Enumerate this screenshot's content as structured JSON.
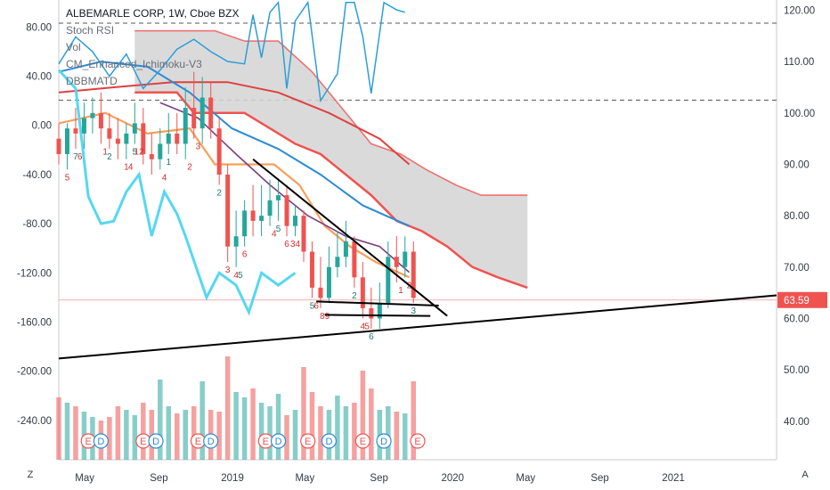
{
  "legend": {
    "title": "ALBEMARLE CORP, 1W, Cboe BZX",
    "lines": [
      "Stoch RSI",
      "Vol",
      "CM_Enhanced_Ichimoku-V3",
      "DBBMATD"
    ]
  },
  "corner_left": "Z",
  "corner_right": "A",
  "colors": {
    "up": "#26a69a",
    "down": "#ef5350",
    "stoch": "#2b9ed8",
    "cyan": "#55d8f0",
    "ichimoku_cloud": "#d3d3d3",
    "ichimoku_edge": "#ef5350",
    "orange": "#f5a05a",
    "ma_blue": "#2b8bd6",
    "ma_red": "#e04040",
    "ma_purple": "#7b3f7f",
    "price_tag": "#ef5350",
    "earnings_marker": "#ef5350",
    "trendline": "#000000"
  },
  "chart_data": {
    "type": "candlestick",
    "symbol": "ALBEMARLE CORP",
    "interval": "1W",
    "exchange": "Cboe BZX",
    "right_axis": {
      "ticks": [
        120,
        110,
        100,
        90,
        80,
        70,
        60,
        50,
        40
      ],
      "tick_labels": [
        "120.00",
        "110.00",
        "100.00",
        "90.00",
        "80.00",
        "70.00",
        "60.00",
        "50.00",
        "40.00"
      ],
      "range": [
        32.5,
        122
      ]
    },
    "left_axis": {
      "ticks": [
        80,
        40,
        0,
        -40,
        -80,
        -120,
        -160,
        -200,
        -240
      ],
      "tick_labels": [
        "80.00",
        "40.00",
        "0.00",
        "-40.00",
        "-80.00",
        "-120.00",
        "-160.00",
        "-200.00",
        "-240.00"
      ],
      "range": [
        -272,
        102
      ]
    },
    "x_axis": {
      "tick_labels": [
        "May",
        "Sep",
        "2019",
        "May",
        "Sep",
        "2020",
        "May",
        "Sep",
        "2021"
      ],
      "range": [
        "2018-03-19",
        "2021-06-21"
      ]
    },
    "last_price": 63.59,
    "dashed_levels": [
      117.5,
      102.5
    ],
    "earnings_label": "E",
    "dividend_label": "D",
    "events": [
      [
        "2018-05-07",
        "E"
      ],
      [
        "2018-05-28",
        "D"
      ],
      [
        "2018-08-06",
        "E"
      ],
      [
        "2018-08-27",
        "D"
      ],
      [
        "2018-11-05",
        "E"
      ],
      [
        "2018-11-26",
        "D"
      ],
      [
        "2019-02-25",
        "E"
      ],
      [
        "2019-03-18",
        "D"
      ],
      [
        "2019-05-06",
        "E"
      ],
      [
        "2019-06-10",
        "D"
      ],
      [
        "2019-08-05",
        "E"
      ],
      [
        "2019-09-09",
        "D"
      ],
      [
        "2019-11-04",
        "E"
      ]
    ],
    "series": [
      {
        "name": "price",
        "type": "candlestick",
        "x": [
          "2018-03-19",
          "2018-04-02",
          "2018-04-16",
          "2018-04-30",
          "2018-05-14",
          "2018-05-28",
          "2018-06-11",
          "2018-06-25",
          "2018-07-09",
          "2018-07-23",
          "2018-08-06",
          "2018-08-20",
          "2018-09-03",
          "2018-09-17",
          "2018-10-01",
          "2018-10-15",
          "2018-10-29",
          "2018-11-12",
          "2018-11-26",
          "2018-12-10",
          "2018-12-24",
          "2019-01-07",
          "2019-01-21",
          "2019-02-04",
          "2019-02-18",
          "2019-03-04",
          "2019-03-18",
          "2019-04-01",
          "2019-04-15",
          "2019-04-29",
          "2019-05-13",
          "2019-05-27",
          "2019-06-10",
          "2019-06-24",
          "2019-07-08",
          "2019-07-22",
          "2019-08-05",
          "2019-08-19",
          "2019-09-02",
          "2019-09-16",
          "2019-09-30",
          "2019-10-14",
          "2019-10-28"
        ],
        "open": [
          95,
          92,
          97,
          96,
          99,
          100,
          97,
          95,
          94,
          96,
          98,
          92,
          91,
          94,
          96,
          94,
          101,
          97,
          103,
          97,
          88,
          74,
          76,
          81,
          79,
          80,
          83,
          84,
          78,
          80,
          73,
          66,
          64,
          70,
          72,
          75,
          68,
          62,
          60,
          63,
          72,
          70,
          73
        ],
        "high": [
          98,
          98,
          101,
          102,
          103,
          104,
          100,
          99,
          98,
          102,
          101,
          96,
          97,
          100,
          100,
          105,
          108,
          107,
          106,
          99,
          90,
          81,
          83,
          86,
          86,
          87,
          87,
          86,
          82,
          81,
          75,
          72,
          74,
          77,
          79,
          76,
          71,
          66,
          67,
          75,
          76,
          76,
          75
        ],
        "low": [
          90,
          89,
          93,
          93,
          96,
          94,
          93,
          91,
          91,
          94,
          90,
          88,
          89,
          92,
          92,
          91,
          95,
          94,
          95,
          86,
          71,
          70,
          74,
          76,
          76,
          78,
          79,
          76,
          76,
          71,
          64,
          62,
          63,
          68,
          70,
          66,
          60,
          58,
          58,
          62,
          67,
          68,
          63
        ],
        "close": [
          92,
          97,
          96,
          99,
          100,
          97,
          95,
          94,
          96,
          98,
          92,
          91,
          94,
          96,
          94,
          101,
          97,
          103,
          97,
          88,
          74,
          76,
          81,
          79,
          80,
          83,
          84,
          78,
          80,
          73,
          66,
          64,
          70,
          72,
          75,
          68,
          62,
          60,
          63,
          72,
          70,
          73,
          64
        ]
      },
      {
        "name": "stoch_rsi",
        "values": [
          [
            "2018-03-19",
            50
          ],
          [
            "2018-04-16",
            72
          ],
          [
            "2018-05-14",
            60
          ],
          [
            "2018-06-11",
            40
          ],
          [
            "2018-07-09",
            58
          ],
          [
            "2018-08-06",
            30
          ],
          [
            "2018-09-03",
            45
          ],
          [
            "2018-10-01",
            62
          ],
          [
            "2018-10-29",
            70
          ],
          [
            "2018-11-26",
            60
          ],
          [
            "2018-12-24",
            52
          ],
          [
            "2019-01-21",
            50
          ],
          [
            "2019-02-04",
            90
          ],
          [
            "2019-02-18",
            55
          ],
          [
            "2019-03-04",
            92
          ],
          [
            "2019-03-18",
            100
          ],
          [
            "2019-04-01",
            30
          ],
          [
            "2019-04-15",
            85
          ],
          [
            "2019-05-06",
            100
          ],
          [
            "2019-05-27",
            20
          ],
          [
            "2019-06-24",
            42
          ],
          [
            "2019-07-08",
            100
          ],
          [
            "2019-07-22",
            100
          ],
          [
            "2019-08-05",
            72
          ],
          [
            "2019-08-19",
            26
          ],
          [
            "2019-09-09",
            100
          ],
          [
            "2019-09-30",
            94
          ],
          [
            "2019-10-14",
            92
          ]
        ]
      },
      {
        "name": "cyan_line",
        "values": [
          [
            "2018-03-19",
            45
          ],
          [
            "2018-04-16",
            30
          ],
          [
            "2018-05-07",
            -58
          ],
          [
            "2018-05-28",
            -80
          ],
          [
            "2018-06-18",
            -78
          ],
          [
            "2018-07-09",
            -54
          ],
          [
            "2018-07-30",
            -40
          ],
          [
            "2018-08-20",
            -90
          ],
          [
            "2018-09-10",
            -54
          ],
          [
            "2018-10-01",
            -72
          ],
          [
            "2018-10-15",
            -90
          ],
          [
            "2018-10-29",
            -110
          ],
          [
            "2018-11-19",
            -140
          ],
          [
            "2018-12-10",
            -120
          ],
          [
            "2019-01-07",
            -130
          ],
          [
            "2019-01-28",
            -152
          ],
          [
            "2019-02-18",
            -120
          ],
          [
            "2019-03-18",
            -130
          ],
          [
            "2019-04-15",
            -120
          ]
        ]
      },
      {
        "name": "ichimoku_red",
        "values": [
          [
            "2018-07-23",
            104
          ],
          [
            "2018-10-01",
            104
          ],
          [
            "2018-10-29",
            100
          ],
          [
            "2019-01-21",
            100
          ],
          [
            "2019-03-04",
            97
          ],
          [
            "2019-04-15",
            94
          ],
          [
            "2019-05-27",
            92
          ],
          [
            "2019-07-08",
            88
          ],
          [
            "2019-08-19",
            84
          ],
          [
            "2019-09-30",
            79
          ],
          [
            "2019-11-11",
            77
          ],
          [
            "2019-12-23",
            74
          ],
          [
            "2020-02-03",
            70
          ],
          [
            "2020-03-16",
            68
          ],
          [
            "2020-05-04",
            66
          ]
        ]
      },
      {
        "name": "ichimoku_upper",
        "values": [
          [
            "2018-07-23",
            116
          ],
          [
            "2018-09-24",
            116
          ],
          [
            "2018-12-03",
            116
          ],
          [
            "2019-01-21",
            114
          ],
          [
            "2019-03-18",
            114
          ],
          [
            "2019-05-13",
            108
          ],
          [
            "2019-07-08",
            100
          ],
          [
            "2019-08-19",
            94
          ],
          [
            "2019-10-07",
            92
          ],
          [
            "2019-11-18",
            89
          ],
          [
            "2020-01-06",
            86
          ],
          [
            "2020-02-17",
            84
          ],
          [
            "2020-05-04",
            84
          ]
        ]
      },
      {
        "name": "orange_baseline",
        "values": [
          [
            "2018-03-19",
            98
          ],
          [
            "2018-06-04",
            100
          ],
          [
            "2018-08-13",
            96
          ],
          [
            "2018-10-22",
            97
          ],
          [
            "2018-12-03",
            90
          ],
          [
            "2019-01-21",
            90
          ],
          [
            "2019-03-11",
            90
          ],
          [
            "2019-04-22",
            86
          ],
          [
            "2019-06-03",
            78
          ],
          [
            "2019-07-15",
            74
          ],
          [
            "2019-08-26",
            71
          ],
          [
            "2019-10-21",
            68
          ]
        ]
      },
      {
        "name": "ma_blue",
        "values": [
          [
            "2018-03-19",
            108
          ],
          [
            "2018-05-28",
            110
          ],
          [
            "2018-08-13",
            109
          ],
          [
            "2018-10-22",
            104
          ],
          [
            "2018-12-31",
            97
          ],
          [
            "2019-03-18",
            93
          ],
          [
            "2019-05-27",
            88
          ],
          [
            "2019-08-05",
            82
          ],
          [
            "2019-10-21",
            78
          ]
        ]
      },
      {
        "name": "ma_red",
        "values": [
          [
            "2018-03-19",
            104
          ],
          [
            "2018-06-18",
            105
          ],
          [
            "2018-09-24",
            106
          ],
          [
            "2018-12-24",
            106
          ],
          [
            "2019-03-18",
            104
          ],
          [
            "2019-06-10",
            100
          ],
          [
            "2019-09-02",
            95
          ],
          [
            "2019-10-21",
            90
          ]
        ]
      },
      {
        "name": "ma_purple",
        "values": [
          [
            "2018-09-03",
            102
          ],
          [
            "2018-11-05",
            99
          ],
          [
            "2019-01-07",
            92
          ],
          [
            "2019-03-04",
            86
          ],
          [
            "2019-05-06",
            80
          ],
          [
            "2019-07-08",
            76
          ],
          [
            "2019-09-02",
            74
          ],
          [
            "2019-10-21",
            69
          ]
        ]
      },
      {
        "name": "trendlines",
        "values": [
          {
            "from": [
              "2018-03-19",
              52.2
            ],
            "to": [
              "2021-06-21",
              64.5
            ]
          },
          {
            "from": [
              "2019-02-04",
              91
            ],
            "to": [
              "2019-12-23",
              60.5
            ]
          },
          {
            "from": [
              "2019-05-20",
              63.3
            ],
            "to": [
              "2019-12-09",
              62.5
            ]
          },
          {
            "from": [
              "2019-06-03",
              60.7
            ],
            "to": [
              "2019-11-25",
              60.5
            ]
          }
        ]
      },
      {
        "name": "volume",
        "type": "bar",
        "values": [
          35,
          32,
          30,
          27,
          24,
          22,
          24,
          30,
          28,
          25,
          32,
          28,
          45,
          30,
          26,
          28,
          30,
          44,
          28,
          27,
          58,
          38,
          35,
          40,
          32,
          30,
          37,
          25,
          28,
          52,
          38,
          30,
          28,
          36,
          30,
          32,
          50,
          40,
          28,
          30,
          27,
          26,
          44
        ]
      }
    ],
    "td_counts": [
      [
        "2018-04-02",
        "5"
      ],
      [
        "2018-04-16",
        "7"
      ],
      [
        "2018-04-23",
        "6"
      ],
      [
        "2018-06-04",
        "1"
      ],
      [
        "2018-06-11",
        "2"
      ],
      [
        "2018-07-09",
        "1"
      ],
      [
        "2018-07-16",
        "4"
      ],
      [
        "2018-07-23",
        "5"
      ],
      [
        "2018-07-30",
        "12"
      ],
      [
        "2018-09-10",
        "4"
      ],
      [
        "2018-09-17",
        "1"
      ],
      [
        "2018-10-22",
        "2"
      ],
      [
        "2018-11-05",
        "3"
      ],
      [
        "2018-12-10",
        "2"
      ],
      [
        "2018-12-24",
        "3"
      ],
      [
        "2019-01-07",
        "4"
      ],
      [
        "2019-01-14",
        "5"
      ],
      [
        "2019-01-21",
        "6"
      ],
      [
        "2019-03-11",
        "4"
      ],
      [
        "2019-03-18",
        "5"
      ],
      [
        "2019-04-01",
        "6"
      ],
      [
        "2019-04-15",
        "34"
      ],
      [
        "2019-05-13",
        "5"
      ],
      [
        "2019-05-20",
        "6"
      ],
      [
        "2019-06-03",
        "89"
      ],
      [
        "2019-07-22",
        "2"
      ],
      [
        "2019-08-05",
        "4"
      ],
      [
        "2019-08-12",
        "5"
      ],
      [
        "2019-08-19",
        "6"
      ],
      [
        "2019-10-07",
        "1"
      ],
      [
        "2019-10-21",
        "2"
      ],
      [
        "2019-10-28",
        "3"
      ]
    ]
  }
}
